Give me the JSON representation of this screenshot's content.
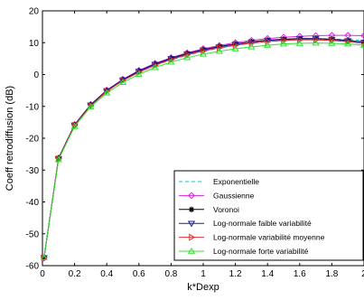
{
  "chart_data": {
    "type": "line",
    "title": "",
    "xlabel": "k*Dexp",
    "ylabel": "Coeff retrodiffusion (dB)",
    "xlim": [
      0,
      2
    ],
    "ylim": [
      -60,
      20
    ],
    "xticks": [
      "0",
      "0.2",
      "0.4",
      "0.6",
      "0.8",
      "1",
      "1.2",
      "1.4",
      "1.6",
      "1.8",
      "2"
    ],
    "yticks": [
      "20",
      "10",
      "0",
      "-10",
      "-20",
      "-30",
      "-40",
      "-50",
      "-60"
    ],
    "grid": false,
    "legend_position": "bottom-right",
    "x": [
      0.01,
      0.1,
      0.2,
      0.3,
      0.4,
      0.5,
      0.6,
      0.7,
      0.8,
      0.9,
      1.0,
      1.1,
      1.2,
      1.3,
      1.4,
      1.5,
      1.6,
      1.7,
      1.8,
      1.9,
      2.0
    ],
    "series": [
      {
        "name": "Exponentielle",
        "color": "#00c8d8",
        "marker": "none",
        "dash": "4,3",
        "values": [
          -57.5,
          -26.5,
          -16,
          -9.7,
          -5.2,
          -1.9,
          0.8,
          2.9,
          4.6,
          6.0,
          7.3,
          8.3,
          9.1,
          9.8,
          10.3,
          10.7,
          11.0,
          11.1,
          11.1,
          11.0,
          10.8
        ]
      },
      {
        "name": "Gaussienne",
        "color": "#e020e0",
        "marker": "diamond",
        "dash": "",
        "values": [
          -57.5,
          -26.2,
          -15.7,
          -9.4,
          -4.9,
          -1.5,
          1.3,
          3.5,
          5.3,
          6.8,
          8.1,
          9.1,
          10.0,
          10.7,
          11.3,
          11.7,
          12.0,
          12.2,
          12.3,
          12.3,
          12.2
        ]
      },
      {
        "name": "Voronoi",
        "color": "#000000",
        "marker": "star",
        "dash": "",
        "values": [
          -57.5,
          -26.3,
          -15.8,
          -9.5,
          -5.0,
          -1.6,
          1.1,
          3.3,
          5.1,
          6.6,
          7.8,
          8.8,
          9.6,
          10.3,
          10.8,
          11.1,
          11.3,
          11.3,
          11.1,
          10.7,
          10.2
        ]
      },
      {
        "name": "Log-normale faible variabilité",
        "color": "#1a1aa0",
        "marker": "triangle-down",
        "dash": "",
        "values": [
          -57.5,
          -26.4,
          -15.9,
          -9.6,
          -5.1,
          -1.7,
          1.0,
          3.2,
          5.0,
          6.5,
          7.7,
          8.7,
          9.5,
          10.2,
          10.7,
          11.0,
          11.2,
          11.2,
          11.0,
          10.6,
          10.1
        ]
      },
      {
        "name": "Log-normale variabilité moyenne",
        "color": "#e03030",
        "marker": "triangle-right",
        "dash": "",
        "values": [
          -57.5,
          -26.5,
          -16.0,
          -9.8,
          -5.3,
          -1.9,
          0.7,
          2.9,
          4.7,
          6.2,
          7.4,
          8.4,
          9.2,
          9.9,
          10.4,
          10.7,
          10.9,
          10.9,
          10.7,
          10.3,
          9.7
        ]
      },
      {
        "name": "Log-normale forte variabilité",
        "color": "#30e030",
        "marker": "triangle-up",
        "dash": "",
        "values": [
          -57.5,
          -26.7,
          -16.3,
          -10.1,
          -5.8,
          -2.5,
          0.1,
          2.2,
          3.9,
          5.3,
          6.4,
          7.3,
          8.1,
          8.7,
          9.2,
          9.6,
          9.8,
          9.9,
          9.8,
          9.6,
          9.2
        ]
      }
    ]
  }
}
